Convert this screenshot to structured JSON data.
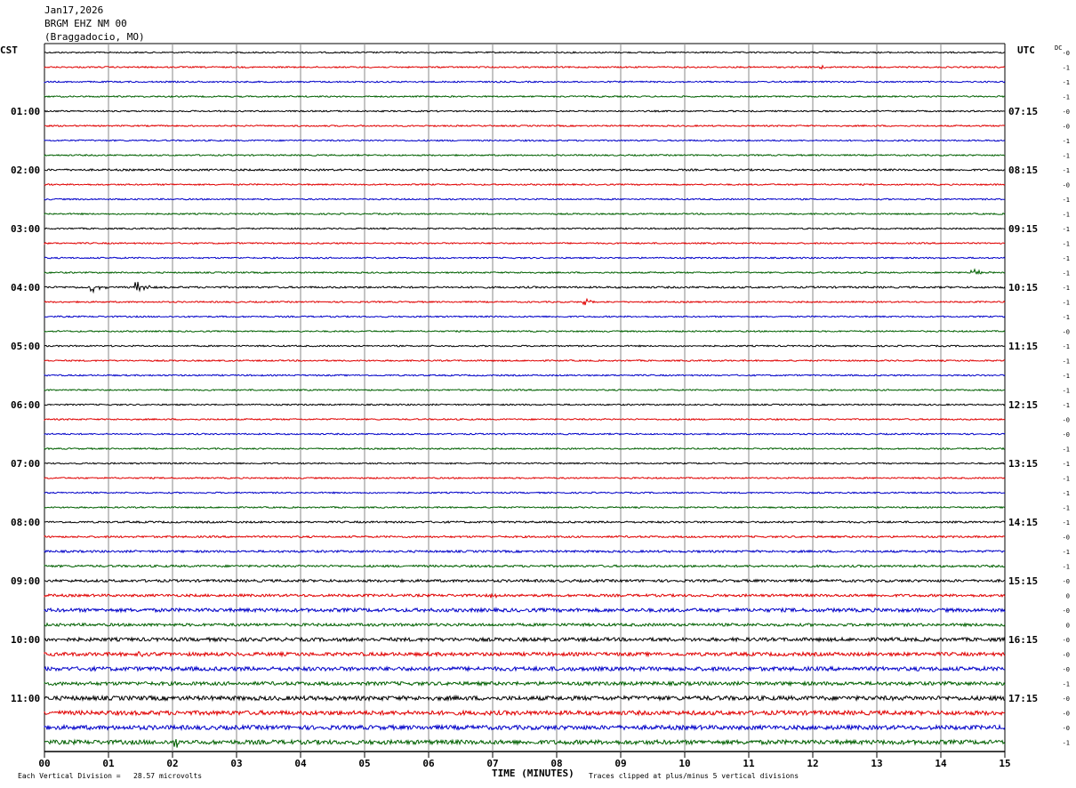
{
  "header": {
    "date": "Jan17,2026",
    "station": "BRGM EHZ NM 00",
    "location": "(Braggadocio, MO)"
  },
  "left_tz": "CST",
  "right_tz": "UTC",
  "dc_label": "DC",
  "footer": {
    "x_axis_title": "TIME (MINUTES)",
    "vertical_division": "Each Vertical Division =   28.57 microvolts",
    "clip_note": "Traces clipped at plus/minus 5 vertical divisions"
  },
  "chart_data": {
    "type": "line",
    "title": "",
    "xlabel": "TIME (MINUTES)",
    "ylabel": "",
    "xlim": [
      0,
      15
    ],
    "x_ticks": [
      "00",
      "01",
      "02",
      "03",
      "04",
      "05",
      "06",
      "07",
      "08",
      "09",
      "10",
      "11",
      "12",
      "13",
      "14",
      "15"
    ],
    "trace_count": 48,
    "minutes_per_trace": 15,
    "colors": [
      "#000000",
      "#e00000",
      "#0000c8",
      "#006000"
    ],
    "left_hour_labels": [
      "01:00",
      "02:00",
      "03:00",
      "04:00",
      "05:00",
      "06:00",
      "07:00",
      "08:00",
      "09:00",
      "10:00",
      "11:00"
    ],
    "right_hour_labels": [
      "07:15",
      "08:15",
      "09:15",
      "10:15",
      "11:15",
      "12:15",
      "13:15",
      "14:15",
      "15:15",
      "16:15",
      "17:15"
    ],
    "dc_offsets": [
      "-0",
      "-1",
      "-1",
      "-1",
      "-0",
      "-0",
      "-1",
      "-1",
      "-1",
      "-0",
      "-1",
      "-1",
      "-1",
      "-1",
      "-1",
      "-1",
      "-1",
      "-1",
      "-1",
      "-0",
      "-1",
      "-1",
      "-1",
      "-1",
      "-1",
      "-0",
      "-0",
      "-1",
      "-1",
      "-1",
      "-1",
      "-1",
      "-1",
      "-0",
      "-1",
      "-1",
      "-0",
      "0",
      "-0",
      "0",
      "-0",
      "-0",
      "-0",
      "-1",
      "-0",
      "-0",
      "-0",
      "-1"
    ],
    "noise_levels": [
      1,
      1,
      1,
      1,
      1,
      1,
      1,
      1,
      1.3,
      1,
      1,
      1,
      1,
      1,
      1,
      1,
      1.3,
      1,
      1,
      1,
      1,
      1,
      1,
      1,
      1,
      1,
      1,
      1,
      1,
      1,
      1,
      1,
      1.3,
      1.3,
      1.5,
      1.5,
      1.8,
      1.8,
      2.5,
      2,
      2.5,
      2.5,
      2.8,
      2.5,
      3,
      3,
      3,
      3
    ],
    "events": [
      {
        "trace": 16,
        "minute": 0.75,
        "amplitude": 5
      },
      {
        "trace": 16,
        "minute": 1.45,
        "amplitude": 7
      },
      {
        "trace": 17,
        "minute": 8.45,
        "amplitude": 4
      },
      {
        "trace": 15,
        "minute": 14.5,
        "amplitude": 4
      },
      {
        "trace": 1,
        "minute": 12.1,
        "amplitude": 2
      },
      {
        "trace": 41,
        "minute": 1.5,
        "amplitude": 3
      },
      {
        "trace": 37,
        "minute": 7.0,
        "amplitude": 3
      },
      {
        "trace": 47,
        "minute": 2.05,
        "amplitude": 6
      }
    ]
  }
}
